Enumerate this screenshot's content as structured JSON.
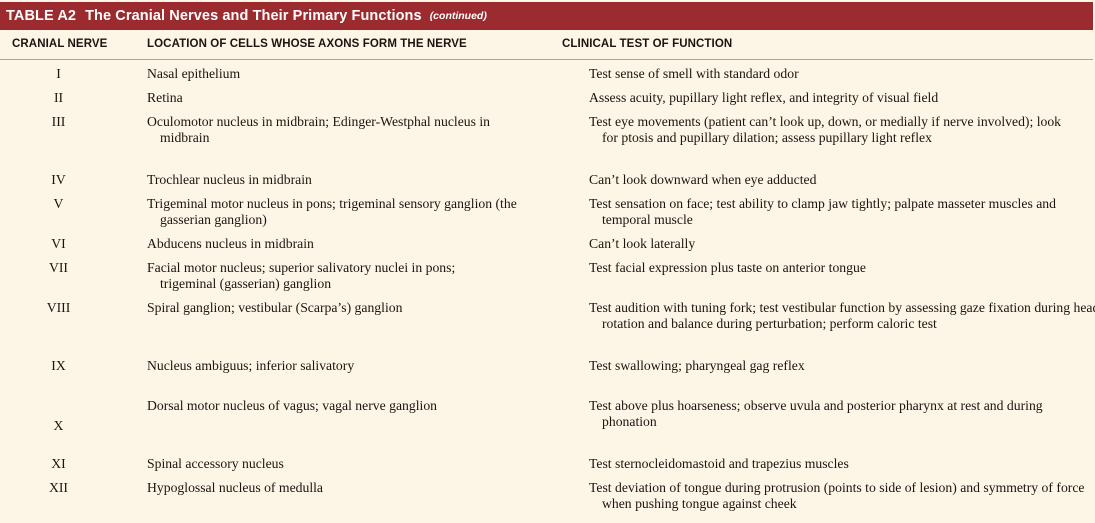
{
  "table": {
    "label": "TABLE A2",
    "title": "The Cranial Nerves and Their Primary Functions",
    "continued": "(continued)",
    "headers": {
      "nerve": "CRANIAL NERVE",
      "location": "LOCATION OF CELLS WHOSE AXONS FORM THE NERVE",
      "test": "CLINICAL TEST OF FUNCTION"
    },
    "rows": [
      {
        "nerve": "I",
        "location": "Nasal epithelium",
        "test": "Test sense of smell with standard odor"
      },
      {
        "nerve": "II",
        "location": "Retina",
        "test": "Assess acuity, pupillary light reflex, and integrity of visual field"
      },
      {
        "nerve": "III",
        "location": "Oculomotor nucleus in midbrain; Edinger-Westphal nucleus in midbrain",
        "test": "Test eye movements (patient can’t look up, down, or medially if nerve involved); look for ptosis and pupillary dilation; assess pupillary light reflex"
      },
      {
        "nerve": "IV",
        "location": "Trochlear nucleus in midbrain",
        "test": "Can’t look downward when eye adducted"
      },
      {
        "nerve": "V",
        "location": "Trigeminal motor nucleus in pons; trigeminal sensory ganglion (the gasserian ganglion)",
        "test": "Test sensation on face; test ability to clamp jaw tightly; palpate masseter muscles and temporal muscle"
      },
      {
        "nerve": "VI",
        "location": "Abducens nucleus in midbrain",
        "test": "Can’t look laterally"
      },
      {
        "nerve": "VII",
        "location": "Facial motor nucleus; superior salivatory nuclei in pons; trigeminal (gasserian) ganglion",
        "test": "Test facial expression plus taste on anterior tongue"
      },
      {
        "nerve": "VIII",
        "location": "Spiral ganglion; vestibular (Scarpa’s) ganglion",
        "test": "Test audition with tuning fork; test vestibular function by assessing gaze fixation during head rotation and balance during perturbation; perform caloric test"
      },
      {
        "nerve": "IX",
        "location": "Nucleus ambiguus; inferior salivatory",
        "test": "Test swallowing; pharyngeal gag reflex"
      },
      {
        "nerve": "X",
        "location": "Dorsal motor nucleus of vagus; vagal nerve ganglion",
        "test": "Test above plus hoarseness; observe uvula and posterior pharynx at rest and during phonation"
      },
      {
        "nerve": "XI",
        "location": "Spinal accessory nucleus",
        "test": "Test sternocleidomastoid and trapezius muscles"
      },
      {
        "nerve": "XII",
        "location": "Hypoglossal nucleus of medulla",
        "test": "Test deviation of tongue during protrusion (points to side of lesion) and symmetry of force when pushing tongue against cheek"
      }
    ]
  }
}
